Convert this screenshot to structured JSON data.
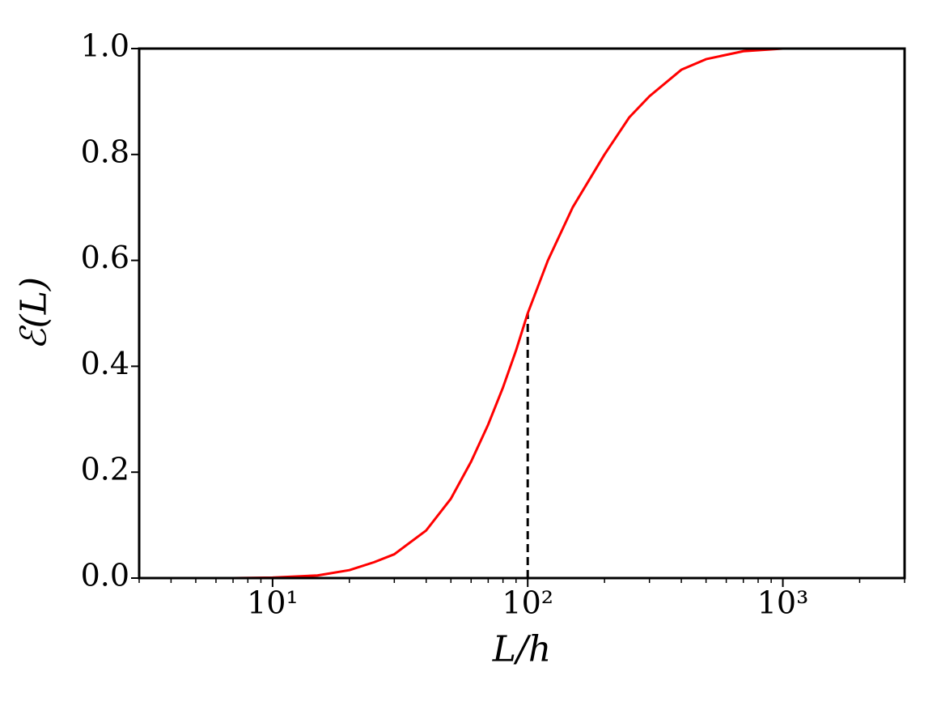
{
  "chart_data": {
    "type": "line",
    "xlabel": "L/h",
    "ylabel": "ℰ(L)",
    "x": [
      3,
      5,
      7,
      10,
      15,
      20,
      25,
      30,
      40,
      50,
      60,
      70,
      80,
      90,
      100,
      120,
      150,
      200,
      250,
      300,
      400,
      500,
      700,
      1000,
      2000,
      3000
    ],
    "series": [
      {
        "color": "#ff0000",
        "values": [
          0,
          0,
          0,
          0.001,
          0.005,
          0.015,
          0.03,
          0.045,
          0.09,
          0.15,
          0.22,
          0.29,
          0.36,
          0.43,
          0.5,
          0.6,
          0.7,
          0.8,
          0.87,
          0.91,
          0.96,
          0.98,
          0.995,
          1.0,
          1.0,
          1.0
        ]
      }
    ],
    "vline": {
      "x": 100,
      "y_end": 0.5,
      "color": "#000000",
      "style": "dashed"
    },
    "xscale": "log",
    "xlim": [
      3,
      3000
    ],
    "ylim": [
      0,
      1
    ],
    "xticks": [
      {
        "value": 10,
        "label": "10¹"
      },
      {
        "value": 100,
        "label": "10²"
      },
      {
        "value": 1000,
        "label": "10³"
      }
    ],
    "yticks": [
      {
        "value": 0,
        "label": "0.0"
      },
      0.2,
      0.4,
      0.6,
      0.8,
      {
        "value": 1,
        "label": "1.0"
      }
    ]
  }
}
